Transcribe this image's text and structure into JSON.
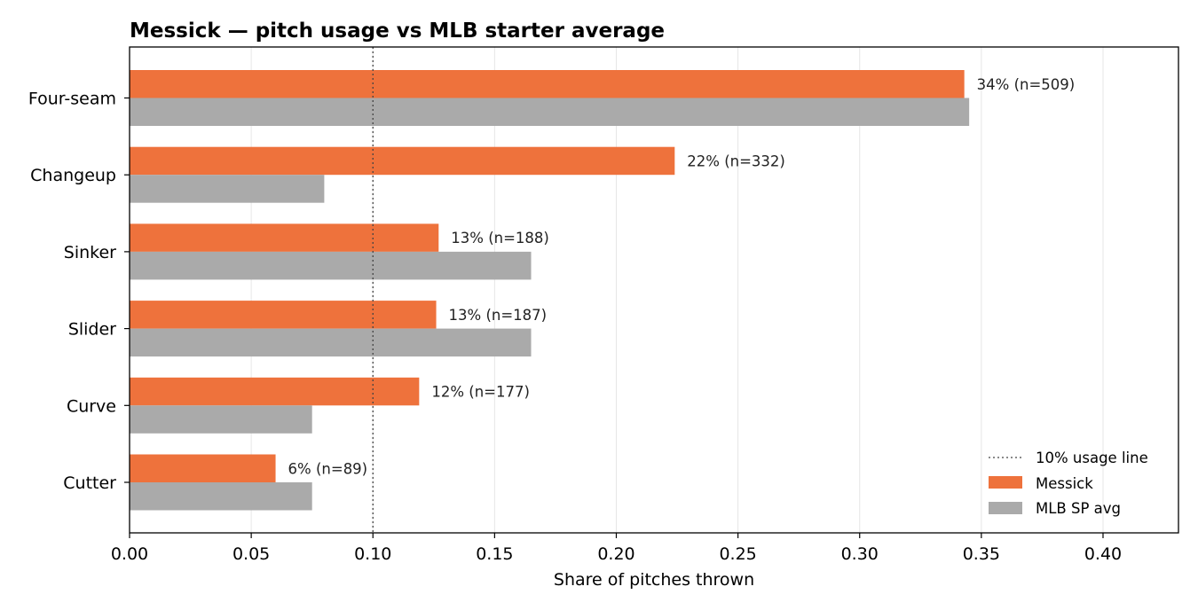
{
  "chart_data": {
    "type": "bar",
    "orientation": "horizontal",
    "title": "Messick — pitch usage vs MLB starter average",
    "xlabel": "Share of pitches thrown",
    "ylabel": "",
    "xlim": [
      0,
      0.431
    ],
    "x_ticks": [
      0.0,
      0.05,
      0.1,
      0.15,
      0.2,
      0.25,
      0.3,
      0.35,
      0.4
    ],
    "x_tick_labels": [
      "0.00",
      "0.05",
      "0.10",
      "0.15",
      "0.20",
      "0.25",
      "0.30",
      "0.35",
      "0.40"
    ],
    "categories": [
      "Four-seam",
      "Changeup",
      "Sinker",
      "Slider",
      "Curve",
      "Cutter"
    ],
    "series": [
      {
        "name": "Messick",
        "color": "#ee723c",
        "values": [
          0.343,
          0.224,
          0.127,
          0.126,
          0.119,
          0.06
        ],
        "labels": [
          "34%  (n=509)",
          "22%  (n=332)",
          "13%  (n=188)",
          "13%  (n=187)",
          "12%  (n=177)",
          "6%  (n=89)"
        ]
      },
      {
        "name": "MLB SP avg",
        "color": "#aaaaaa",
        "values": [
          0.345,
          0.08,
          0.165,
          0.165,
          0.075,
          0.075
        ]
      }
    ],
    "reference_line": {
      "value": 0.1,
      "label": "10% usage line",
      "style": "dotted"
    },
    "grid": "x-only",
    "legend_position": "lower-right"
  }
}
